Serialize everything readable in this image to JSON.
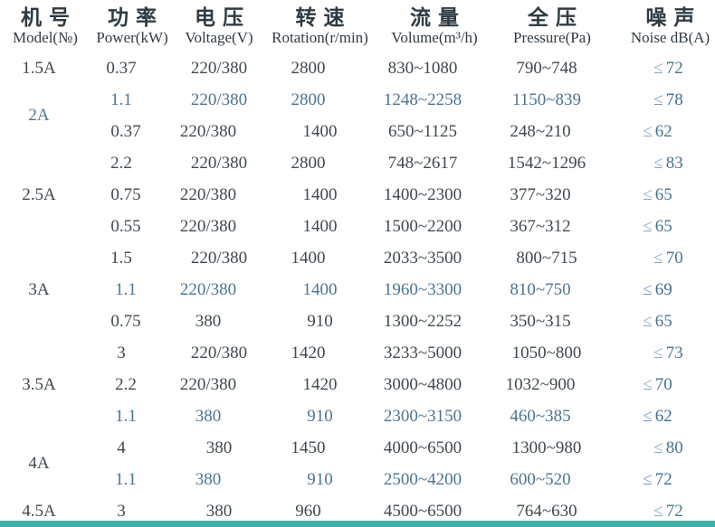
{
  "table": {
    "columns": [
      {
        "zh": "机号",
        "en": "Model(№)"
      },
      {
        "zh": "功率",
        "en": "Power(kW)"
      },
      {
        "zh": "电压",
        "en": "Voltage(V)"
      },
      {
        "zh": "转速",
        "en": "Rotation(r/min)"
      },
      {
        "zh": "流量",
        "en": "Volume(m³/h)"
      },
      {
        "zh": "全压",
        "en": "Pressure(Pa)"
      },
      {
        "zh": "噪声",
        "en": "Noise dB(A)"
      }
    ],
    "noise_prefix": "≤",
    "groups": [
      {
        "model": "1.5A",
        "rows": [
          {
            "power": "0.37",
            "voltage": "220/380",
            "rotation": "2800",
            "volume": "830~1080",
            "pressure": "790~748",
            "noise": "72",
            "tint": "normal"
          }
        ]
      },
      {
        "model": "2A",
        "rows": [
          {
            "power": "1.1",
            "voltage": "220/380",
            "rotation": "2800",
            "volume": "1248~2258",
            "pressure": "1150~839",
            "noise": "78",
            "tint": "blue"
          },
          {
            "power": "0.37",
            "voltage": "220/380",
            "rotation": "1400",
            "volume": "650~1125",
            "pressure": "248~210",
            "noise": "62",
            "tint": "normal"
          }
        ]
      },
      {
        "model": "2.5A",
        "rows": [
          {
            "power": "2.2",
            "voltage": "220/380",
            "rotation": "2800",
            "volume": "748~2617",
            "pressure": "1542~1296",
            "noise": "83",
            "tint": "normal"
          },
          {
            "power": "0.75",
            "voltage": "220/380",
            "rotation": "1400",
            "volume": "1400~2300",
            "pressure": "377~320",
            "noise": "65",
            "tint": "normal"
          },
          {
            "power": "0.55",
            "voltage": "220/380",
            "rotation": "1400",
            "volume": "1500~2200",
            "pressure": "367~312",
            "noise": "65",
            "tint": "normal"
          }
        ]
      },
      {
        "model": "3A",
        "rows": [
          {
            "power": "1.5",
            "voltage": "220/380",
            "rotation": "1400",
            "volume": "2033~3500",
            "pressure": "800~715",
            "noise": "70",
            "tint": "normal"
          },
          {
            "power": "1.1",
            "voltage": "220/380",
            "rotation": "1400",
            "volume": "1960~3300",
            "pressure": "810~750",
            "noise": "69",
            "tint": "blue"
          },
          {
            "power": "0.75",
            "voltage": "380",
            "rotation": "910",
            "volume": "1300~2252",
            "pressure": "350~315",
            "noise": "65",
            "tint": "normal"
          }
        ]
      },
      {
        "model": "3.5A",
        "rows": [
          {
            "power": "3",
            "voltage": "220/380",
            "rotation": "1420",
            "volume": "3233~5000",
            "pressure": "1050~800",
            "noise": "73",
            "tint": "normal"
          },
          {
            "power": "2.2",
            "voltage": "220/380",
            "rotation": "1420",
            "volume": "3000~4800",
            "pressure": "1032~900",
            "noise": "70",
            "tint": "normal"
          },
          {
            "power": "1.1",
            "voltage": "380",
            "rotation": "910",
            "volume": "2300~3150",
            "pressure": "460~385",
            "noise": "62",
            "tint": "blue"
          }
        ]
      },
      {
        "model": "4A",
        "rows": [
          {
            "power": "4",
            "voltage": "380",
            "rotation": "1450",
            "volume": "4000~6500",
            "pressure": "1300~980",
            "noise": "80",
            "tint": "normal"
          },
          {
            "power": "1.1",
            "voltage": "380",
            "rotation": "910",
            "volume": "2500~4200",
            "pressure": "600~520",
            "noise": "72",
            "tint": "blue"
          }
        ]
      },
      {
        "model": "4.5A",
        "rows": [
          {
            "power": "3",
            "voltage": "380",
            "rotation": "960",
            "volume": "4500~6500",
            "pressure": "764~630",
            "noise": "72",
            "tint": "normal"
          }
        ]
      }
    ]
  },
  "colors": {
    "header_text": "#2e3b43",
    "text": "#3e4950",
    "blue_text": "#4a7590",
    "noise_symbol": "#85abbc",
    "noise_value": "#48758d",
    "accent_bar": "#3fafa8"
  }
}
